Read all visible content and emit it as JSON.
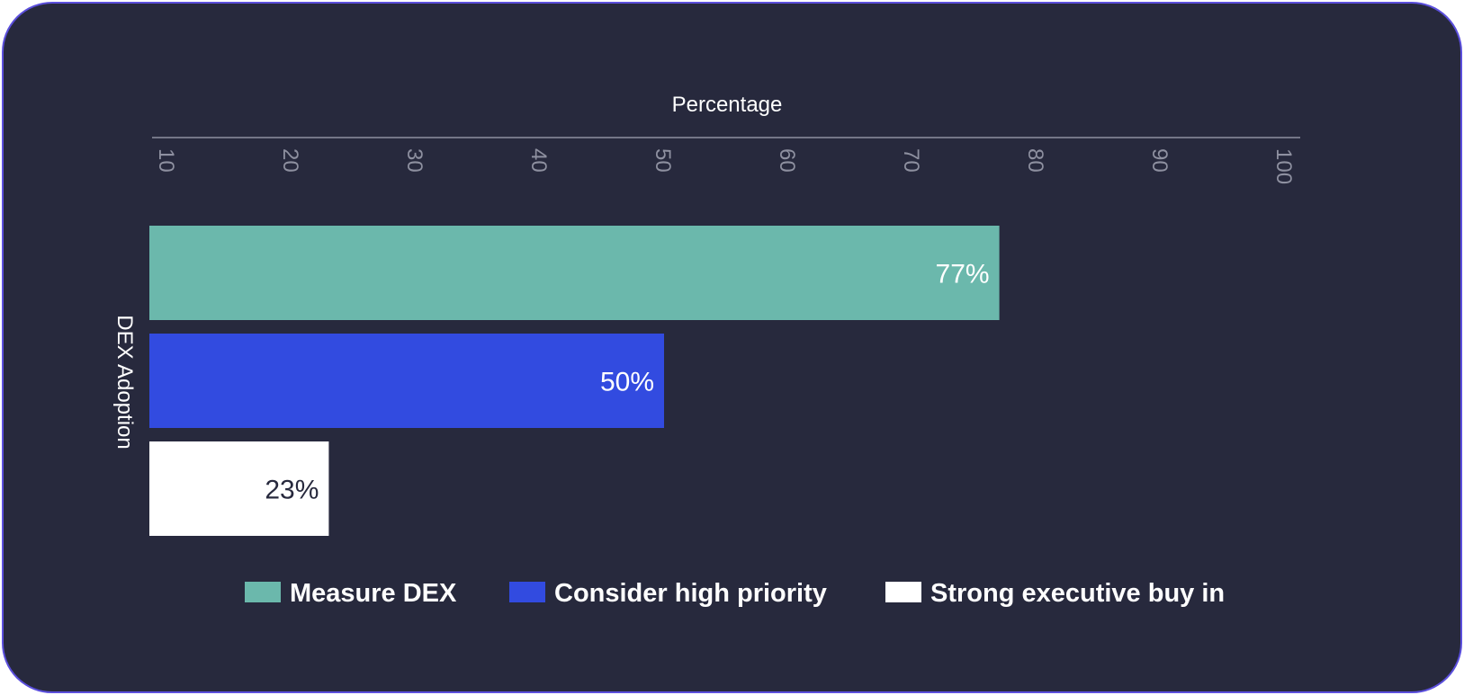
{
  "chart_data": {
    "type": "bar",
    "orientation": "horizontal",
    "title": "",
    "xlabel": "Percentage",
    "ylabel": "DEX Adoption",
    "xlim": [
      10,
      100
    ],
    "x_ticks": [
      10,
      20,
      30,
      40,
      50,
      60,
      70,
      80,
      90,
      100
    ],
    "x_axis_position": "top",
    "grid": false,
    "legend_position": "bottom",
    "series": [
      {
        "name": "Measure DEX",
        "value": 77,
        "label": "77%",
        "color": "#6bb8ac",
        "label_color": "#ffffff"
      },
      {
        "name": "Consider high priority",
        "value": 50,
        "label": "50%",
        "color": "#324be0",
        "label_color": "#ffffff"
      },
      {
        "name": "Strong executive buy in",
        "value": 23,
        "label": "23%",
        "color": "#ffffff",
        "label_color": "#27293d"
      }
    ]
  },
  "colors": {
    "background": "#27293d",
    "border": "#5b4fdc",
    "axis_line": "#8e90a0",
    "tick_text": "#8e90a0",
    "text": "#ffffff"
  }
}
